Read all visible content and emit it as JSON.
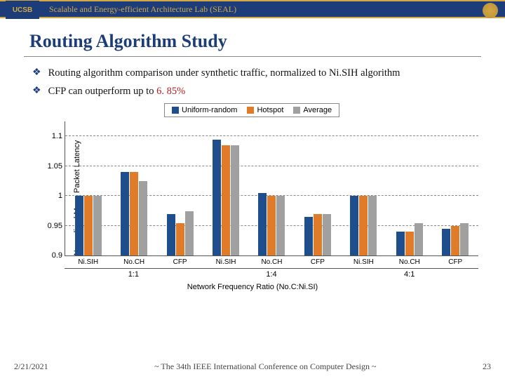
{
  "header": {
    "lab_title": "Scalable and Energy-efficient Architecture Lab (SEAL)",
    "logo_text": "UCSB"
  },
  "slide": {
    "title": "Routing Algorithm Study",
    "bullet1": "Routing algorithm comparison under synthetic traffic, normalized to Ni.SIH algorithm",
    "bullet2_prefix": "CFP can outperform up to ",
    "bullet2_highlight": "6. 85%"
  },
  "chart": {
    "type": "bar",
    "ylabel": "Normalized Mean Packet Latency",
    "xlabel": "Network Frequency Ratio (No.C:Ni.SI)",
    "legend": [
      "Uniform-random",
      "Hotspot",
      "Average"
    ],
    "series_colors": [
      "#1f4e8c",
      "#e07b2a",
      "#a0a0a0"
    ],
    "background_color": "#ffffff",
    "grid_color": "#888888",
    "ylim": [
      0.9,
      1.125
    ],
    "yticks": [
      0.9,
      0.95,
      1,
      1.05,
      1.1
    ],
    "ytick_labels": [
      "0.9",
      "0.95",
      "1",
      "1.05",
      "1.1"
    ],
    "ratio_groups": [
      "1:1",
      "1:4",
      "4:1"
    ],
    "categories": [
      "Ni.SIH",
      "No.CH",
      "CFP",
      "Ni.SIH",
      "No.CH",
      "CFP",
      "Ni.SIH",
      "No.CH",
      "CFP"
    ],
    "data": {
      "uniform": [
        1.0,
        1.04,
        0.97,
        1.095,
        1.005,
        0.965,
        1.0,
        0.94,
        0.945
      ],
      "hotspot": [
        1.0,
        1.04,
        0.955,
        1.085,
        1.0,
        0.97,
        1.0,
        0.94,
        0.95
      ],
      "average": [
        1.0,
        1.025,
        0.975,
        1.085,
        1.0,
        0.97,
        1.0,
        0.955,
        0.955
      ]
    }
  },
  "footer": {
    "date": "2/21/2021",
    "conference": "~ The 34th IEEE International Conference on Computer Design ~",
    "page": "23"
  }
}
